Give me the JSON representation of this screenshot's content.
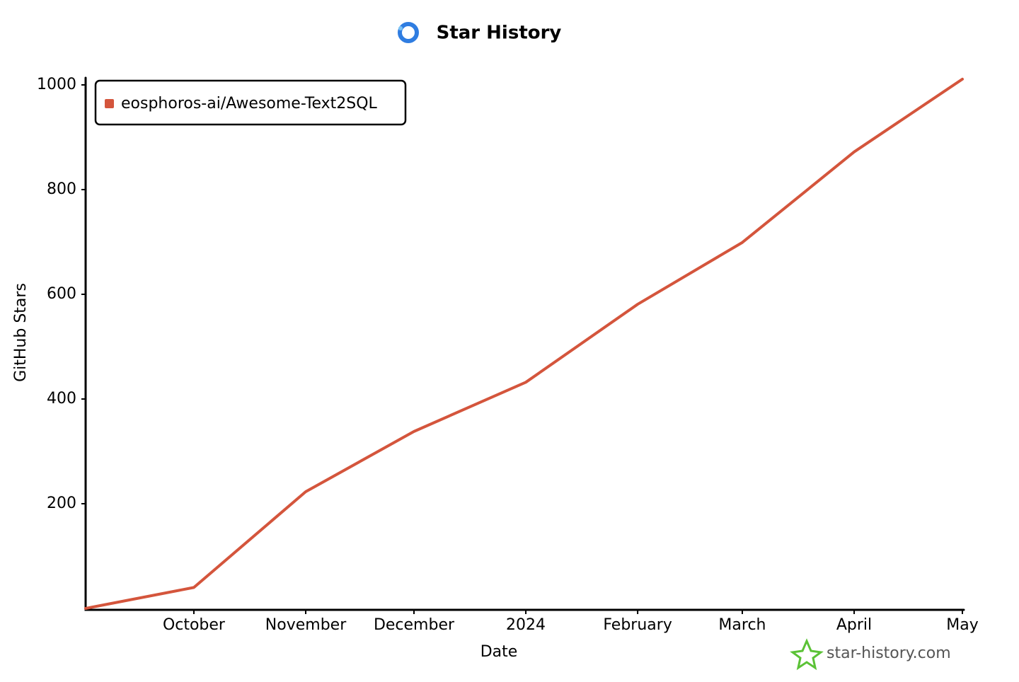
{
  "chart_data": {
    "type": "line",
    "title": "Star History",
    "x_label": "Date",
    "y_label": "GitHub Stars",
    "watermark": "star-history.com",
    "x": [
      "2023-09",
      "2023-10",
      "2023-11",
      "2023-12",
      "2024-01",
      "2024-02",
      "2024-03",
      "2024-04",
      "2024-05"
    ],
    "series": [
      {
        "name": "eosphoros-ai/Awesome-Text2SQL",
        "color": "#d4553c",
        "values": [
          0,
          40,
          223,
          338,
          432,
          581,
          699,
          872,
          1011
        ]
      }
    ],
    "xlim": [
      "2023-09",
      "2024-05"
    ],
    "xticks": [
      {
        "value": "2023-10",
        "label": "October"
      },
      {
        "value": "2023-11",
        "label": "November"
      },
      {
        "value": "2023-12",
        "label": "December"
      },
      {
        "value": "2024-01",
        "label": "2024"
      },
      {
        "value": "2024-02",
        "label": "February"
      },
      {
        "value": "2024-03",
        "label": "March"
      },
      {
        "value": "2024-04",
        "label": "April"
      },
      {
        "value": "2024-05",
        "label": "May"
      }
    ],
    "ylim": [
      0,
      1000
    ],
    "yticks": [
      200,
      400,
      600,
      800,
      1000
    ],
    "legend": "top-left"
  }
}
